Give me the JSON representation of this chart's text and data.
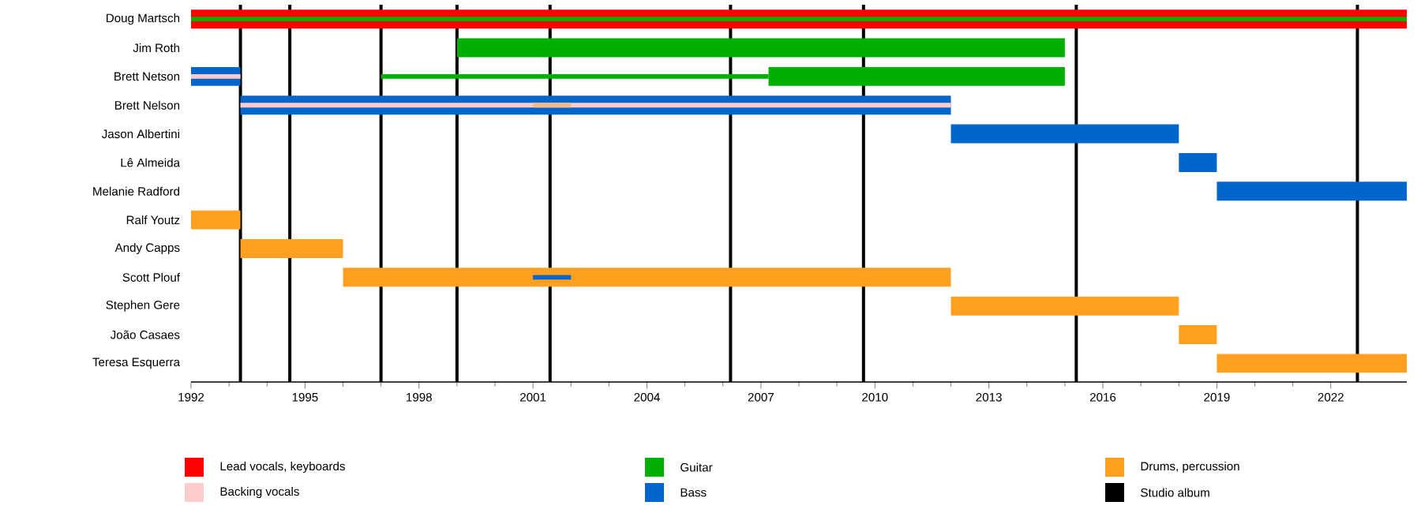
{
  "chart_data": {
    "type": "bar",
    "orientation": "horizontal",
    "categories": [
      "Doug Martsch",
      "Jim Roth",
      "Brett Netson",
      "Brett Nelson",
      "Jason Albertini",
      "Lê Almeida",
      "Melanie Radford",
      "Ralf Youtz",
      "Andy Capps",
      "Scott Plouf",
      "Stephen Gere",
      "João Casaes",
      "Teresa Esquerra"
    ],
    "xlim": [
      1992,
      2024
    ],
    "xticks": [
      1992,
      1995,
      1998,
      2001,
      2004,
      2007,
      2010,
      2013,
      2016,
      2019,
      2022
    ],
    "legend": "bottom",
    "series": [
      {
        "name": "Lead vocals, keyboards",
        "color": "#ff0000",
        "base": [
          1992,
          null,
          null,
          null,
          null,
          null,
          null,
          null,
          null,
          null,
          null,
          null,
          null
        ],
        "values": [
          32,
          null,
          null,
          null,
          null,
          null,
          null,
          null,
          null,
          null,
          null,
          null,
          null
        ]
      },
      {
        "name": "Backing vocals",
        "color": "#ffcccc",
        "base": [
          null,
          null,
          1992,
          1993.3,
          null,
          null,
          null,
          null,
          null,
          null,
          null,
          null,
          null
        ],
        "values": [
          null,
          null,
          1.3,
          18.7,
          null,
          null,
          null,
          null,
          null,
          null,
          null,
          null,
          null
        ]
      },
      {
        "name": "Guitar",
        "color": "#00b000",
        "base": [
          null,
          1999,
          2007.2,
          null,
          null,
          null,
          null,
          null,
          null,
          null,
          null,
          null,
          null
        ],
        "values": [
          null,
          16,
          7.8,
          null,
          null,
          null,
          null,
          null,
          null,
          null,
          null,
          null,
          null
        ]
      },
      {
        "name": "Bass",
        "color": "#0066cc",
        "base": [
          null,
          null,
          1992,
          1993.3,
          2012,
          2018,
          2019,
          null,
          null,
          null,
          null,
          null,
          null
        ],
        "values": [
          null,
          null,
          1.3,
          18.7,
          6,
          1,
          5,
          null,
          null,
          null,
          null,
          null,
          null
        ]
      },
      {
        "name": "Drums, percussion",
        "color": "#ffa020",
        "base": [
          null,
          null,
          null,
          null,
          null,
          null,
          null,
          1992,
          1993.3,
          1996,
          2012,
          2018,
          2019
        ],
        "values": [
          null,
          null,
          null,
          null,
          null,
          null,
          null,
          1.3,
          2.7,
          16,
          6,
          1,
          5
        ]
      },
      {
        "color": "#00b000",
        "base": [
          1992,
          null,
          1997,
          null,
          null,
          null,
          null,
          null,
          null,
          null,
          null,
          null,
          null
        ],
        "values": [
          32,
          null,
          10.2,
          null,
          null,
          null,
          null,
          null,
          null,
          null,
          null,
          null,
          null
        ]
      },
      {
        "color": "#0066cc",
        "base": [
          null,
          null,
          null,
          null,
          null,
          null,
          null,
          null,
          null,
          2001,
          null,
          null,
          null
        ],
        "values": [
          null,
          null,
          null,
          null,
          null,
          null,
          null,
          null,
          null,
          1,
          null,
          null,
          null
        ]
      },
      {
        "color": "#f4b98a",
        "base": [
          null,
          null,
          null,
          2001,
          null,
          null,
          null,
          null,
          null,
          null,
          null,
          null,
          null
        ],
        "values": [
          null,
          null,
          null,
          1,
          null,
          null,
          null,
          null,
          null,
          null,
          null,
          null,
          null
        ]
      }
    ],
    "ref_lines": [
      {
        "axis": "x",
        "value": 1993.3,
        "label": "Studio album",
        "color": "#000000"
      },
      {
        "axis": "x",
        "value": 1994.6,
        "color": "#000000"
      },
      {
        "axis": "x",
        "value": 1997.0,
        "color": "#000000"
      },
      {
        "axis": "x",
        "value": 1999.0,
        "color": "#000000"
      },
      {
        "axis": "x",
        "value": 2001.45,
        "color": "#000000"
      },
      {
        "axis": "x",
        "value": 2006.2,
        "color": "#000000"
      },
      {
        "axis": "x",
        "value": 2009.7,
        "color": "#000000"
      },
      {
        "axis": "x",
        "value": 2015.3,
        "color": "#000000"
      },
      {
        "axis": "x",
        "value": 2022.7,
        "color": "#000000"
      }
    ]
  }
}
